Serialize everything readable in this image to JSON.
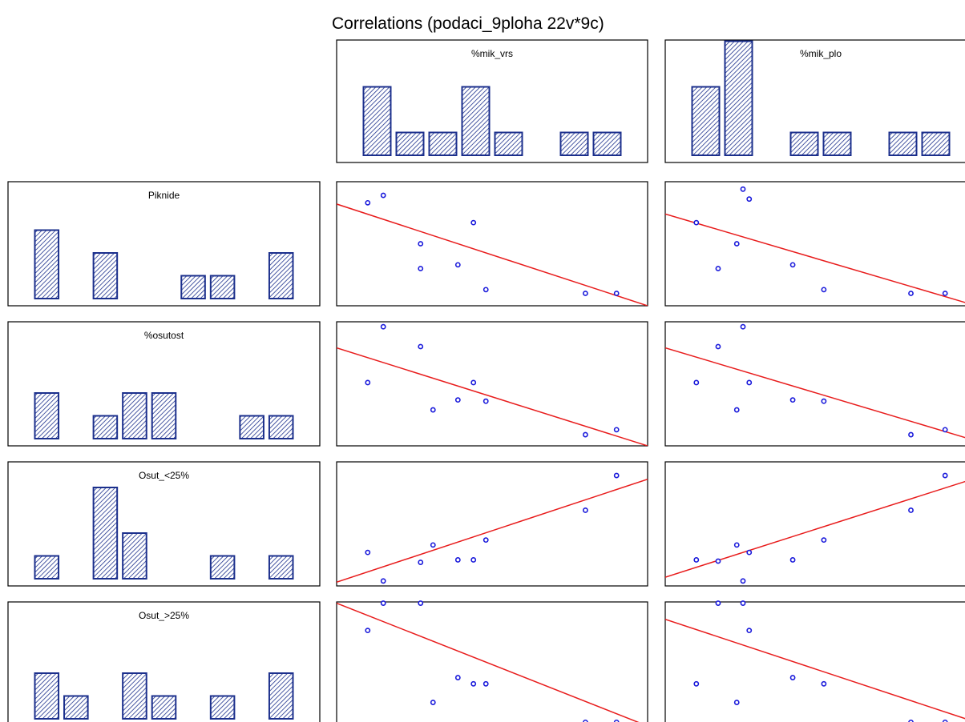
{
  "title": "Correlations (podaci_9ploha 22v*9c)",
  "colors": {
    "bar_fill": "#ffffff",
    "bar_hatch": "#1b2f8c",
    "point": "#1a1adb",
    "fit_line": "#e81c1c",
    "frame": "#000000"
  },
  "chart_data": {
    "type": "scatter",
    "title": "Correlations (podaci_9ploha 22v*9c)",
    "column_variables": [
      "%mik_vrs",
      "%mik_plo"
    ],
    "row_variables": [
      "Piknide",
      "%osutost",
      "Osut_<25%",
      "Osut_>25%"
    ],
    "histograms": {
      "%mik_vrs": [
        3,
        1,
        1,
        3,
        1,
        0,
        1,
        1
      ],
      "%mik_plo": [
        3,
        5,
        0,
        1,
        1,
        0,
        1,
        1
      ],
      "Piknide": [
        3,
        0,
        2,
        0,
        0,
        1,
        1,
        0,
        2
      ],
      "%osutost": [
        2,
        0,
        1,
        2,
        2,
        0,
        0,
        1,
        1
      ],
      "Osut_<25%": [
        1,
        0,
        4,
        2,
        0,
        0,
        1,
        0,
        1
      ],
      "Osut_>25%": [
        2,
        1,
        0,
        2,
        1,
        0,
        1,
        0,
        2
      ]
    },
    "scatter": [
      {
        "x": "%mik_vrs",
        "y": "Piknide",
        "xv": [
          0.1,
          0.15,
          0.27,
          0.27,
          0.39,
          0.44,
          0.48,
          0.8,
          0.9
        ],
        "yv": [
          0.83,
          0.89,
          0.3,
          0.5,
          0.33,
          0.67,
          0.13,
          0.1,
          0.1
        ],
        "fit": [
          0.82,
          0.0
        ]
      },
      {
        "x": "%mik_plo",
        "y": "Piknide",
        "xv": [
          0.1,
          0.17,
          0.23,
          0.25,
          0.27,
          0.41,
          0.51,
          0.79,
          0.9
        ],
        "yv": [
          0.67,
          0.3,
          0.5,
          0.94,
          0.86,
          0.33,
          0.13,
          0.1,
          0.1
        ],
        "fit": [
          0.74,
          0.0
        ]
      },
      {
        "x": "%mik_vrs",
        "y": "%osutost",
        "xv": [
          0.1,
          0.15,
          0.27,
          0.31,
          0.39,
          0.44,
          0.48,
          0.8,
          0.9
        ],
        "yv": [
          0.51,
          0.96,
          0.8,
          0.29,
          0.37,
          0.51,
          0.36,
          0.09,
          0.13
        ],
        "fit": [
          0.79,
          0.0
        ]
      },
      {
        "x": "%mik_plo",
        "y": "%osutost",
        "xv": [
          0.1,
          0.17,
          0.23,
          0.25,
          0.27,
          0.41,
          0.51,
          0.79,
          0.9
        ],
        "yv": [
          0.51,
          0.8,
          0.29,
          0.96,
          0.51,
          0.37,
          0.36,
          0.09,
          0.13
        ],
        "fit": [
          0.79,
          0.04
        ]
      },
      {
        "x": "%mik_vrs",
        "y": "Osut_<25%",
        "xv": [
          0.1,
          0.15,
          0.27,
          0.31,
          0.39,
          0.44,
          0.48,
          0.8,
          0.9
        ],
        "yv": [
          0.27,
          0.04,
          0.19,
          0.33,
          0.21,
          0.21,
          0.37,
          0.61,
          0.89
        ],
        "fit": [
          0.03,
          0.86
        ]
      },
      {
        "x": "%mik_plo",
        "y": "Osut_<25%",
        "xv": [
          0.1,
          0.17,
          0.23,
          0.25,
          0.27,
          0.41,
          0.51,
          0.79,
          0.9
        ],
        "yv": [
          0.21,
          0.2,
          0.33,
          0.04,
          0.27,
          0.21,
          0.37,
          0.61,
          0.89
        ],
        "fit": [
          0.07,
          0.87
        ]
      },
      {
        "x": "%mik_vrs",
        "y": "Osut_>25%",
        "xv": [
          0.1,
          0.15,
          0.27,
          0.31,
          0.39,
          0.44,
          0.48,
          0.8,
          0.9
        ],
        "yv": [
          0.77,
          0.99,
          0.99,
          0.19,
          0.39,
          0.34,
          0.34,
          0.03,
          0.03
        ],
        "fit": [
          0.99,
          0.0
        ]
      },
      {
        "x": "%mik_plo",
        "y": "Osut_>25%",
        "xv": [
          0.1,
          0.17,
          0.23,
          0.25,
          0.27,
          0.41,
          0.51,
          0.79,
          0.9
        ],
        "yv": [
          0.34,
          0.99,
          0.19,
          0.99,
          0.77,
          0.39,
          0.34,
          0.03,
          0.03
        ],
        "fit": [
          0.86,
          0.03
        ]
      }
    ]
  }
}
